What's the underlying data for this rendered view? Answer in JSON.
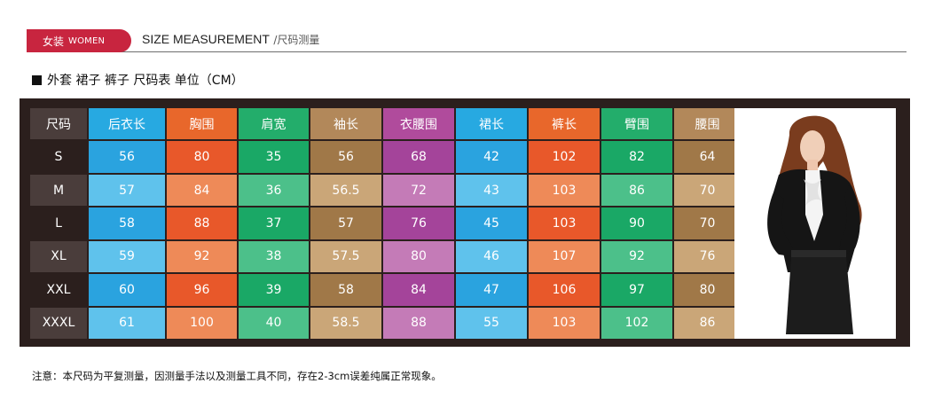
{
  "header": {
    "badge_cn": "女装",
    "badge_en": "WOMEN",
    "title_en": "SIZE MEASUREMENT",
    "title_cn": "/尺码测量"
  },
  "subtitle": "外套 裙子 裤子 尺码表  单位（CM）",
  "table": {
    "headers": [
      "尺码",
      "后衣长",
      "胸围",
      "肩宽",
      "袖长",
      "衣腰围",
      "裙长",
      "裤长",
      "臂围",
      "腰围"
    ],
    "rows": [
      [
        "S",
        "56",
        "80",
        "35",
        "56",
        "68",
        "42",
        "102",
        "82",
        "64"
      ],
      [
        "M",
        "57",
        "84",
        "36",
        "56.5",
        "72",
        "43",
        "103",
        "86",
        "70"
      ],
      [
        "L",
        "58",
        "88",
        "37",
        "57",
        "76",
        "45",
        "103",
        "90",
        "70"
      ],
      [
        "XL",
        "59",
        "92",
        "38",
        "57.5",
        "80",
        "46",
        "107",
        "92",
        "76"
      ],
      [
        "XXL",
        "60",
        "96",
        "39",
        "58",
        "84",
        "47",
        "106",
        "97",
        "80"
      ],
      [
        "XXXL",
        "61",
        "100",
        "40",
        "58.5",
        "88",
        "55",
        "103",
        "102",
        "86"
      ]
    ]
  },
  "colors": {
    "header": [
      "#4a3d3b",
      "#27a9e1",
      "#e8672b",
      "#23ad6b",
      "#b2885a",
      "#b04b9c",
      "#27a9e1",
      "#e8672b",
      "#23ad6b",
      "#b2885a"
    ],
    "row_a": [
      "#2b1f1d",
      "#2aa3df",
      "#e8582a",
      "#1aa866",
      "#a07848",
      "#a4449a",
      "#2aa3df",
      "#e8582a",
      "#1aa866",
      "#a07848"
    ],
    "row_b": [
      "#4a3d3b",
      "#5fc2ec",
      "#ee8a58",
      "#4cc08a",
      "#caa678",
      "#c47bb7",
      "#5fc2ec",
      "#ee8a58",
      "#4cc08a",
      "#caa678"
    ]
  },
  "note": "注意：本尺码为平复测量，因测量手法以及测量工具不同，存在2-3cm误差纯属正常现象。"
}
